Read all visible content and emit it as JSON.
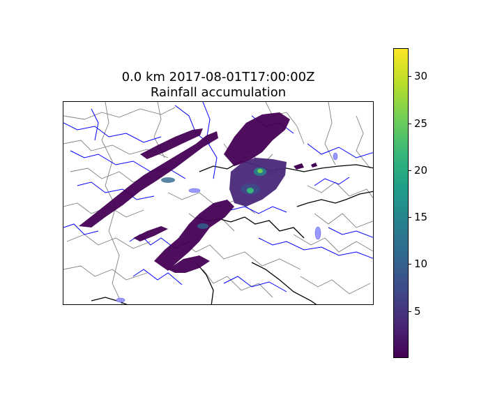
{
  "figure": {
    "title_line1": "0.0 km 2017-08-01T17:00:00Z",
    "title_line2": "Rainfall accumulation"
  },
  "colormap": {
    "name": "viridis",
    "min": 0,
    "max": 33,
    "ticks": [
      5,
      10,
      15,
      20,
      25,
      30
    ],
    "stops": [
      "#440154",
      "#482878",
      "#3e4a89",
      "#31688e",
      "#26828e",
      "#1f9e89",
      "#35b779",
      "#6ece58",
      "#b5de2b",
      "#fde725"
    ]
  },
  "layers": {
    "rivers_color": "#0000ff",
    "country_border_color": "#000000",
    "admin_border_color": "#808080",
    "lakes_color": "#9999ff"
  }
}
